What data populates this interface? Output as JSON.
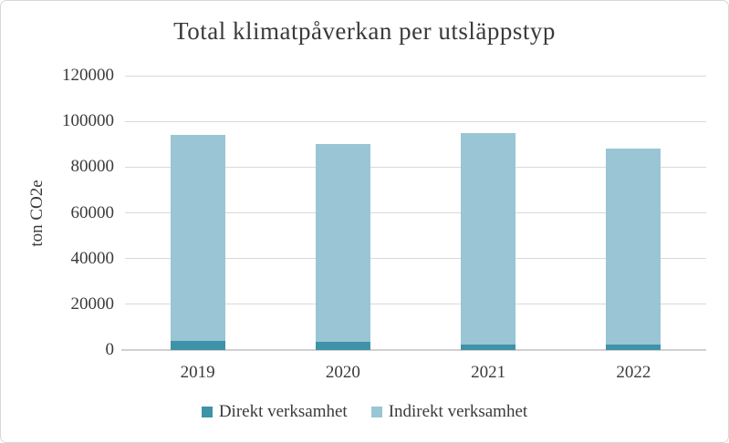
{
  "frame": {
    "background": "#ffffff",
    "border_color": "#d7d7d7"
  },
  "chart_data": {
    "type": "bar",
    "stacked": true,
    "title": "Total klimatpåverkan per utsläppstyp",
    "xlabel": "",
    "ylabel": "ton CO2e",
    "categories": [
      "2019",
      "2020",
      "2021",
      "2022"
    ],
    "series": [
      {
        "name": "Direkt verksamhet",
        "color": "#3e93a9",
        "values": [
          4000,
          3500,
          2500,
          2500
        ]
      },
      {
        "name": "Indirekt verksamhet",
        "color": "#9ac5d5",
        "values": [
          90000,
          86500,
          92500,
          85500
        ]
      }
    ],
    "totals": [
      94000,
      90000,
      95000,
      88000
    ],
    "ylim": [
      0,
      120000
    ],
    "yticks": [
      0,
      20000,
      40000,
      60000,
      80000,
      100000,
      120000
    ],
    "grid": true,
    "gridline_color": "#d9d9d9",
    "axis_line_color": "#d0d0d0",
    "text_color": "#3a3a3a",
    "legend_position": "bottom"
  }
}
